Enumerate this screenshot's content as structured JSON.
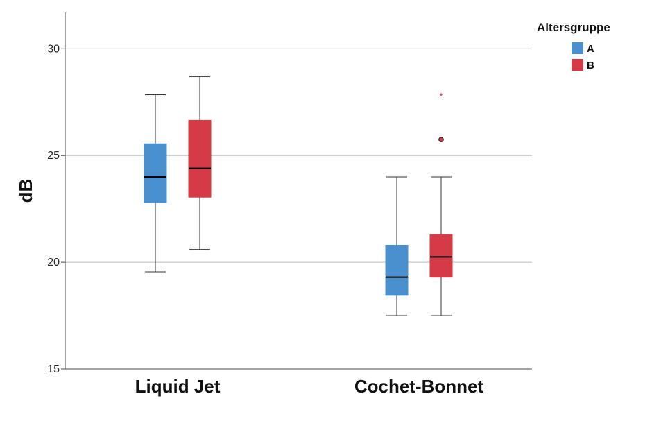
{
  "chart_data": {
    "type": "boxplot",
    "ylabel": "dB",
    "ylim": [
      15,
      31.7
    ],
    "yticks": [
      15,
      20,
      25,
      30
    ],
    "grid": true,
    "categories": [
      "Liquid Jet",
      "Cochet-Bonnet"
    ],
    "legend": {
      "title": "Altersgruppe",
      "position": "top-right"
    },
    "series": [
      {
        "name": "A",
        "color": "#4A90CF",
        "boxes": [
          {
            "whisker_low": 19.55,
            "q1": 22.8,
            "median": 24.0,
            "q3": 25.55,
            "whisker_high": 27.85,
            "outliers": [],
            "extremes": []
          },
          {
            "whisker_low": 17.5,
            "q1": 18.45,
            "median": 19.3,
            "q3": 20.8,
            "whisker_high": 24.0,
            "outliers": [],
            "extremes": []
          }
        ]
      },
      {
        "name": "B",
        "color": "#D63A46",
        "boxes": [
          {
            "whisker_low": 20.6,
            "q1": 23.05,
            "median": 24.4,
            "q3": 26.65,
            "whisker_high": 28.7,
            "outliers": [],
            "extremes": []
          },
          {
            "whisker_low": 17.5,
            "q1": 19.3,
            "median": 20.25,
            "q3": 21.3,
            "whisker_high": 24.0,
            "outliers": [
              25.75
            ],
            "extremes": [
              27.85
            ]
          }
        ]
      }
    ]
  }
}
